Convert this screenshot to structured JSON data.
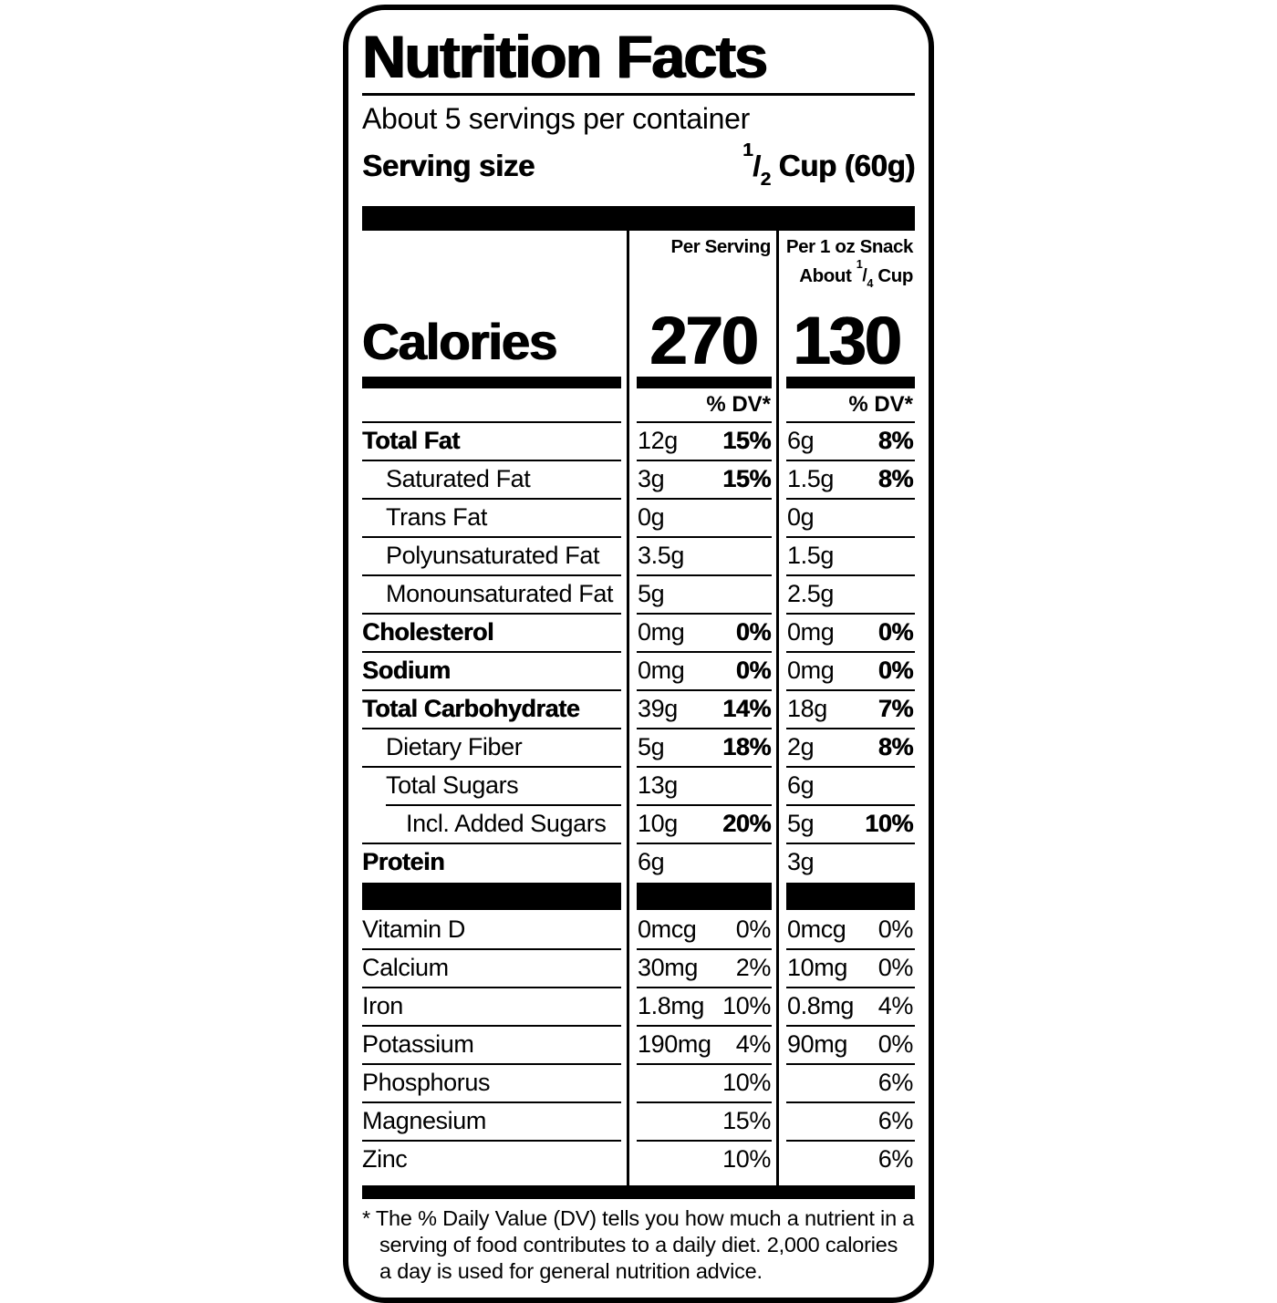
{
  "title": "Nutrition Facts",
  "servings_per_container": "About 5 servings per container",
  "serving_size": {
    "label": "Serving size",
    "fraction_numerator": "1",
    "fraction_denominator": "2",
    "unit": "Cup (60g)"
  },
  "columns": {
    "col1_header": "Per Serving",
    "col2_header_line1": "Per 1 oz Snack",
    "col2_header_line2_prefix": "About",
    "col2_fraction_numerator": "1",
    "col2_fraction_denominator": "4",
    "col2_header_line2_suffix": "Cup",
    "dv_header": "% DV*"
  },
  "calories": {
    "label": "Calories",
    "per_serving": "270",
    "per_snack": "130"
  },
  "nutrients": [
    {
      "label": "Total Fat",
      "col1": {
        "amount": "12g",
        "dv": "15%"
      },
      "col2": {
        "amount": "6g",
        "dv": "8%"
      }
    },
    {
      "label": "Saturated Fat",
      "col1": {
        "amount": "3g",
        "dv": "15%"
      },
      "col2": {
        "amount": "1.5g",
        "dv": "8%"
      }
    },
    {
      "label": "Trans Fat",
      "col1": {
        "amount": "0g",
        "dv": ""
      },
      "col2": {
        "amount": "0g",
        "dv": ""
      }
    },
    {
      "label": "Polyunsaturated Fat",
      "col1": {
        "amount": "3.5g",
        "dv": ""
      },
      "col2": {
        "amount": "1.5g",
        "dv": ""
      }
    },
    {
      "label": "Monounsaturated Fat",
      "col1": {
        "amount": "5g",
        "dv": ""
      },
      "col2": {
        "amount": "2.5g",
        "dv": ""
      }
    },
    {
      "label": "Cholesterol",
      "col1": {
        "amount": "0mg",
        "dv": "0%"
      },
      "col2": {
        "amount": "0mg",
        "dv": "0%"
      }
    },
    {
      "label": "Sodium",
      "col1": {
        "amount": "0mg",
        "dv": "0%"
      },
      "col2": {
        "amount": "0mg",
        "dv": "0%"
      }
    },
    {
      "label": "Total Carbohydrate",
      "col1": {
        "amount": "39g",
        "dv": "14%"
      },
      "col2": {
        "amount": "18g",
        "dv": "7%"
      }
    },
    {
      "label": "Dietary Fiber",
      "col1": {
        "amount": "5g",
        "dv": "18%"
      },
      "col2": {
        "amount": "2g",
        "dv": "8%"
      }
    },
    {
      "label": "Total Sugars",
      "col1": {
        "amount": "13g",
        "dv": ""
      },
      "col2": {
        "amount": "6g",
        "dv": ""
      }
    },
    {
      "label": "Incl. Added Sugars",
      "col1": {
        "amount": "10g",
        "dv": "20%"
      },
      "col2": {
        "amount": "5g",
        "dv": "10%"
      }
    },
    {
      "label": "Protein",
      "col1": {
        "amount": "6g",
        "dv": ""
      },
      "col2": {
        "amount": "3g",
        "dv": ""
      }
    }
  ],
  "vitamins": [
    {
      "label": "Vitamin D",
      "col1": {
        "amount": "0mcg",
        "dv": "0%"
      },
      "col2": {
        "amount": "0mcg",
        "dv": "0%"
      }
    },
    {
      "label": "Calcium",
      "col1": {
        "amount": "30mg",
        "dv": "2%"
      },
      "col2": {
        "amount": "10mg",
        "dv": "0%"
      }
    },
    {
      "label": "Iron",
      "col1": {
        "amount": "1.8mg",
        "dv": "10%"
      },
      "col2": {
        "amount": "0.8mg",
        "dv": "4%"
      }
    },
    {
      "label": "Potassium",
      "col1": {
        "amount": "190mg",
        "dv": "4%"
      },
      "col2": {
        "amount": "90mg",
        "dv": "0%"
      }
    },
    {
      "label": "Phosphorus",
      "col1": {
        "amount": "",
        "dv": "10%"
      },
      "col2": {
        "amount": "",
        "dv": "6%"
      }
    },
    {
      "label": "Magnesium",
      "col1": {
        "amount": "",
        "dv": "15%"
      },
      "col2": {
        "amount": "",
        "dv": "6%"
      }
    },
    {
      "label": "Zinc",
      "col1": {
        "amount": "",
        "dv": "10%"
      },
      "col2": {
        "amount": "",
        "dv": "6%"
      }
    }
  ],
  "footnote": "* The % Daily Value (DV) tells you how much a nutrient in a serving of food contributes to a daily diet. 2,000 calories a day is used for general nutrition advice.",
  "colors": {
    "ink": "#000000",
    "background": "#ffffff"
  }
}
